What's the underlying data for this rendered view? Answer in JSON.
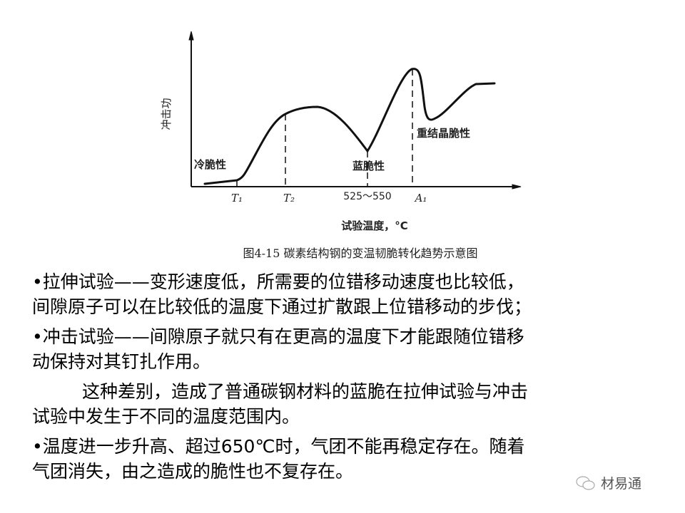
{
  "figure": {
    "ylabel": "冲击功",
    "xlabel": "试验温度，°C",
    "x_ticks": [
      "T₁",
      "T₂",
      "525～550",
      "A₁"
    ],
    "annotations": [
      "冷脆性",
      "蓝脆性",
      "重结晶脆性"
    ],
    "caption": "图4-15  碳素结构钢的变温韧脆转化趋势示意图"
  },
  "text": {
    "p1_line1": "•拉伸试验——变形速度低，所需要的位错移动速度也比较低，",
    "p1_line2": "间隙原子可以在比较低的温度下通过扩散跟上位错移动的步伐；",
    "p2_line1": "•冲击试验——间隙原子就只有在更高的温度下才能跟随位错移",
    "p2_line2": "动保持对其钉扎作用。",
    "p3_line1": "这种差别，造成了普通碳钢材料的蓝脆在拉伸试验与冲击",
    "p3_line2": "试验中发生于不同的温度范围内。",
    "p4_line1": "•温度进一步升高、超过650℃时，气团不能再稳定存在。随着",
    "p4_line2": "气团消失，由之造成的脆性也不复存在。"
  },
  "watermark": {
    "label": "材易通",
    "icon": "wechat-icon"
  }
}
